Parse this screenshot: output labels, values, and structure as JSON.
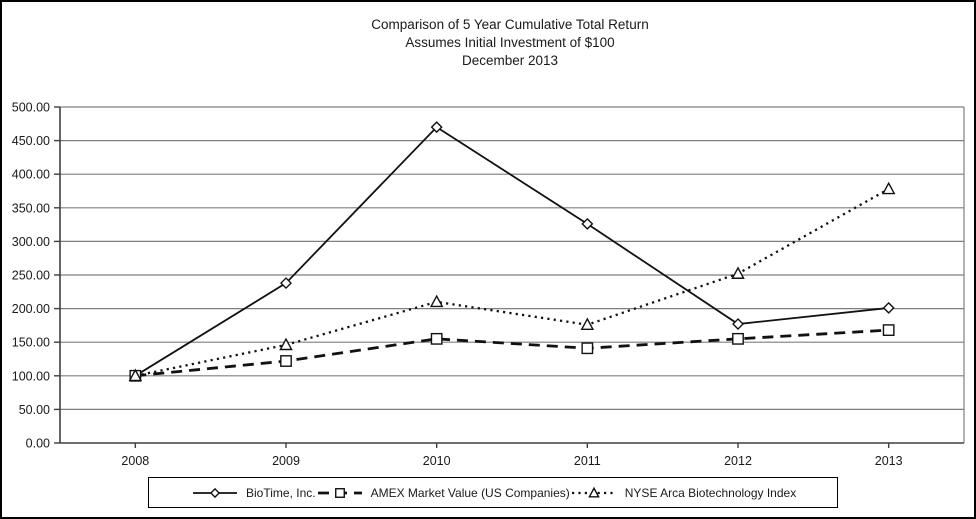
{
  "chart_data": {
    "type": "line",
    "title": "Comparison of 5 Year Cumulative Total Return",
    "subtitle": "Assumes Initial Investment of $100",
    "date_line": "December 2013",
    "categories": [
      "2008",
      "2009",
      "2010",
      "2011",
      "2012",
      "2013"
    ],
    "series": [
      {
        "name": "BioTime, Inc.",
        "values": [
          100,
          238,
          470,
          326,
          177,
          201
        ],
        "line": "solid",
        "marker": "diamond"
      },
      {
        "name": "AMEX Market Value (US Companies)",
        "values": [
          100,
          122,
          155,
          141,
          155,
          168
        ],
        "line": "dashed",
        "marker": "square"
      },
      {
        "name": "NYSE Arca Biotechnology Index",
        "values": [
          100,
          146,
          210,
          176,
          252,
          378
        ],
        "line": "dotted",
        "marker": "triangle"
      }
    ],
    "ylim": [
      0,
      500
    ],
    "ytick_step": 50,
    "ytick_labels": [
      "0.00",
      "50.00",
      "100.00",
      "150.00",
      "200.00",
      "250.00",
      "300.00",
      "350.00",
      "400.00",
      "450.00",
      "500.00"
    ],
    "grid": true,
    "legend_position": "bottom",
    "colors": {
      "series": "#111111",
      "grid": "#7f7f7f",
      "axis": "#3f3f3f",
      "text": "#1a1a1a",
      "background": "#ffffff",
      "border": "#000000"
    }
  }
}
